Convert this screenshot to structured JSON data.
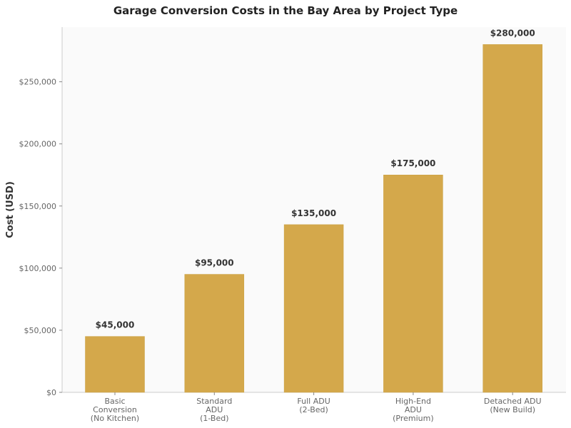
{
  "chart_data": {
    "type": "bar",
    "title": "Garage Conversion Costs in the Bay Area by Project Type",
    "xlabel": "",
    "ylabel": "Cost (USD)",
    "categories": [
      [
        "Basic",
        "Conversion",
        "(No Kitchen)"
      ],
      [
        "Standard",
        "ADU",
        "(1-Bed)"
      ],
      [
        "Full ADU",
        "(2-Bed)"
      ],
      [
        "High-End",
        "ADU",
        "(Premium)"
      ],
      [
        "Detached ADU",
        "(New Build)"
      ]
    ],
    "values": [
      45000,
      95000,
      135000,
      175000,
      280000
    ],
    "data_labels": [
      "$45,000",
      "$95,000",
      "$135,000",
      "$175,000",
      "$280,000"
    ],
    "yticks": [
      0,
      50000,
      100000,
      150000,
      200000,
      250000
    ],
    "ytick_labels": [
      "$0",
      "$50,000",
      "$100,000",
      "$150,000",
      "$200,000",
      "$250,000"
    ],
    "ylim": [
      0,
      294000
    ],
    "grid": false,
    "bar_color": "#d4a84b",
    "plot_background": "#fafafa"
  }
}
